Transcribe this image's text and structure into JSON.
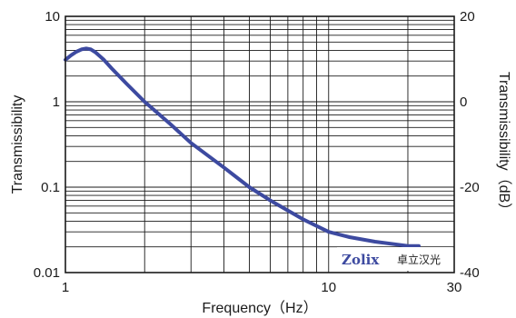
{
  "colors": {
    "curve": "#3d4aa0",
    "grid": "#1a1a1a",
    "background": "#ffffff"
  },
  "logo": {
    "brand": "Zolix",
    "chinese": "卓立汉光"
  },
  "chart_data": {
    "type": "line",
    "title": "",
    "xlabel": "Frequency（Hz）",
    "ylabel": "Transmissibility",
    "y2label": "Transmissibility（dB）",
    "xscale": "log",
    "yscale": "log",
    "xlim": [
      1,
      30
    ],
    "ylim": [
      0.01,
      10
    ],
    "y2lim": [
      -40,
      20
    ],
    "grid": true,
    "xticks": [
      {
        "value": 1,
        "label": "1"
      },
      {
        "value": 10,
        "label": "10"
      },
      {
        "value": 30,
        "label": "30"
      }
    ],
    "yticks": [
      {
        "value": 10,
        "label": "10"
      },
      {
        "value": 1,
        "label": "1"
      },
      {
        "value": 0.1,
        "label": "0.1"
      },
      {
        "value": 0.01,
        "label": "0.01"
      }
    ],
    "y2ticks": [
      {
        "value": 20,
        "label": "20"
      },
      {
        "value": 0,
        "label": "0"
      },
      {
        "value": -20,
        "label": "-20"
      },
      {
        "value": -40,
        "label": "-40"
      }
    ],
    "series": [
      {
        "x": [
          1.0,
          1.05,
          1.1,
          1.15,
          1.2,
          1.25,
          1.3,
          1.4,
          1.5,
          1.7,
          2.0,
          2.5,
          3.0,
          4.0,
          5.0,
          6.0,
          8.0,
          10.0,
          12.0,
          15.0,
          20.0,
          22.0
        ],
        "y": [
          3.1,
          3.5,
          3.85,
          4.1,
          4.2,
          4.1,
          3.8,
          3.1,
          2.45,
          1.65,
          1.0,
          0.55,
          0.33,
          0.17,
          0.1,
          0.07,
          0.042,
          0.03,
          0.026,
          0.023,
          0.0205,
          0.0205
        ]
      }
    ]
  }
}
